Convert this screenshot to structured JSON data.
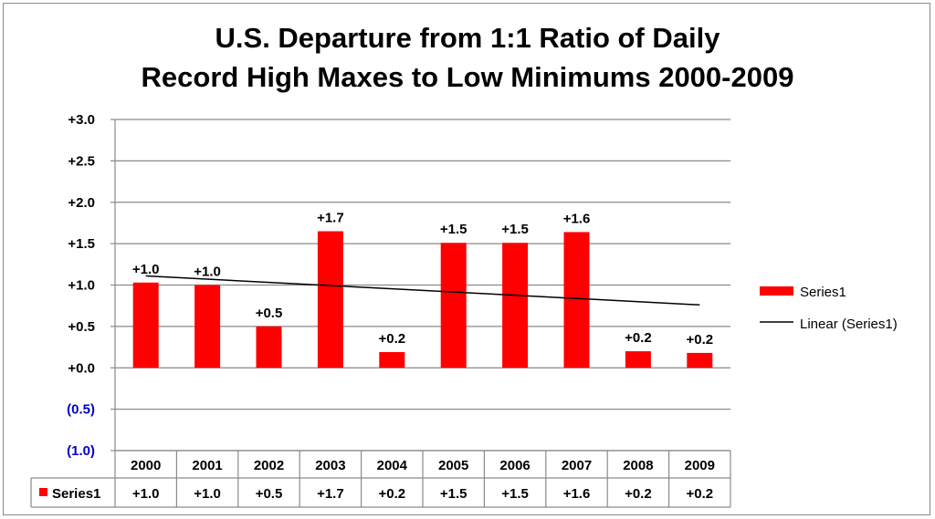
{
  "chart_data": {
    "type": "bar",
    "title_lines": [
      "U.S. Departure from 1:1 Ratio of Daily",
      "Record High Maxes to Low Minimums 2000-2009"
    ],
    "categories": [
      "2000",
      "2001",
      "2002",
      "2003",
      "2004",
      "2005",
      "2006",
      "2007",
      "2008",
      "2009"
    ],
    "series": [
      {
        "name": "Series1",
        "color": "#ff0000",
        "values": [
          1.03,
          1.0,
          0.5,
          1.65,
          0.19,
          1.51,
          1.51,
          1.64,
          0.2,
          0.18
        ],
        "labels": [
          "+1.0",
          "+1.0",
          "+0.5",
          "+1.7",
          "+0.2",
          "+1.5",
          "+1.5",
          "+1.6",
          "+0.2",
          "+0.2"
        ]
      }
    ],
    "trendline": {
      "name": "Linear (Series1)",
      "color": "#000000",
      "start": 1.11,
      "end": 0.76
    },
    "ylim": [
      -1.0,
      3.0
    ],
    "yticks": [
      {
        "value": 3.0,
        "label": "+3.0"
      },
      {
        "value": 2.5,
        "label": "+2.5"
      },
      {
        "value": 2.0,
        "label": "+2.0"
      },
      {
        "value": 1.5,
        "label": "+1.5"
      },
      {
        "value": 1.0,
        "label": "+1.0"
      },
      {
        "value": 0.5,
        "label": "+0.5"
      },
      {
        "value": 0.0,
        "label": "+0.0"
      },
      {
        "value": -0.5,
        "label": "(0.5)"
      },
      {
        "value": -1.0,
        "label": "(1.0)"
      }
    ],
    "negative_tick_color": "#0000cc",
    "grid": true,
    "legend_position": "right",
    "data_table": true
  }
}
